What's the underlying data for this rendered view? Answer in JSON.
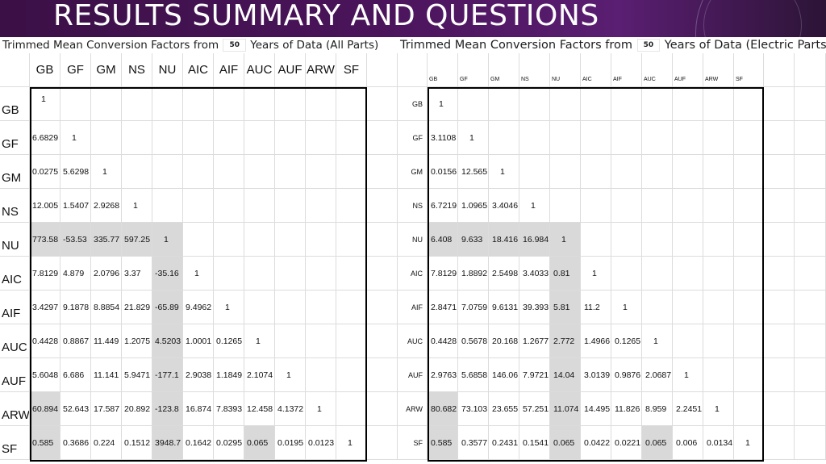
{
  "slide": {
    "title": "RESULTS SUMMARY AND QUESTIONS"
  },
  "left_table": {
    "caption_prefix": "Trimmed Mean Conversion Factors from",
    "years": "50",
    "caption_suffix": "Years of Data (All Parts)",
    "headers": [
      "GB",
      "GF",
      "GM",
      "NS",
      "NU",
      "AIC",
      "AIF",
      "AUC",
      "AUF",
      "ARW",
      "SF"
    ],
    "rows": [
      [
        "1"
      ],
      [
        "6.6829",
        "1"
      ],
      [
        "0.0275",
        "5.6298",
        "1"
      ],
      [
        "12.005",
        "1.5407",
        "2.9268",
        "1"
      ],
      [
        "773.58",
        "-53.53",
        "335.77",
        "597.25",
        "1"
      ],
      [
        "7.8129",
        "4.879",
        "2.0796",
        "3.37",
        "-35.16",
        "1"
      ],
      [
        "3.4297",
        "9.1878",
        "8.8854",
        "21.829",
        "-65.89",
        "9.4962",
        "1"
      ],
      [
        "0.4428",
        "0.8867",
        "11.449",
        "1.2075",
        "4.5203",
        "1.0001",
        "0.1265",
        "1"
      ],
      [
        "5.6048",
        "6.686",
        "11.141",
        "5.9471",
        "-177.1",
        "2.9038",
        "1.1849",
        "2.1074",
        "1"
      ],
      [
        "60.894",
        "52.643",
        "17.587",
        "20.892",
        "-123.8",
        "16.874",
        "7.8393",
        "12.458",
        "4.1372",
        "1"
      ],
      [
        "0.585",
        "0.3686",
        "0.224",
        "0.1512",
        "3948.7",
        "0.1642",
        "0.0295",
        "0.065",
        "0.0195",
        "0.0123",
        "1"
      ]
    ]
  },
  "right_table": {
    "caption_prefix": "Trimmed Mean Conversion Factors from",
    "years": "50",
    "caption_suffix": "Years of Data (Electric Parts)",
    "headers": [
      "GB",
      "GF",
      "GM",
      "NS",
      "NU",
      "AIC",
      "AIF",
      "AUC",
      "AUF",
      "ARW",
      "SF"
    ],
    "rows": [
      [
        "1"
      ],
      [
        "3.1108",
        "1"
      ],
      [
        "0.0156",
        "12.565",
        "1"
      ],
      [
        "6.7219",
        "1.0965",
        "3.4046",
        "1"
      ],
      [
        "6.408",
        "9.633",
        "18.416",
        "16.984",
        "1"
      ],
      [
        "7.8129",
        "1.8892",
        "2.5498",
        "3.4033",
        "0.81",
        "1"
      ],
      [
        "2.8471",
        "7.0759",
        "9.6131",
        "39.393",
        "5.81",
        "11.2",
        "1"
      ],
      [
        "0.4428",
        "0.5678",
        "20.168",
        "1.2677",
        "2.772",
        "1.4966",
        "0.1265",
        "1"
      ],
      [
        "2.9763",
        "5.6858",
        "146.06",
        "7.9721",
        "14.04",
        "3.0139",
        "0.9876",
        "2.0687",
        "1"
      ],
      [
        "80.682",
        "73.103",
        "23.655",
        "57.251",
        "11.074",
        "14.495",
        "11.826",
        "8.959",
        "2.2451",
        "1"
      ],
      [
        "0.585",
        "0.3577",
        "0.2431",
        "0.1541",
        "0.065",
        "0.0422",
        "0.0221",
        "0.065",
        "0.006",
        "0.0134",
        "1"
      ]
    ]
  }
}
